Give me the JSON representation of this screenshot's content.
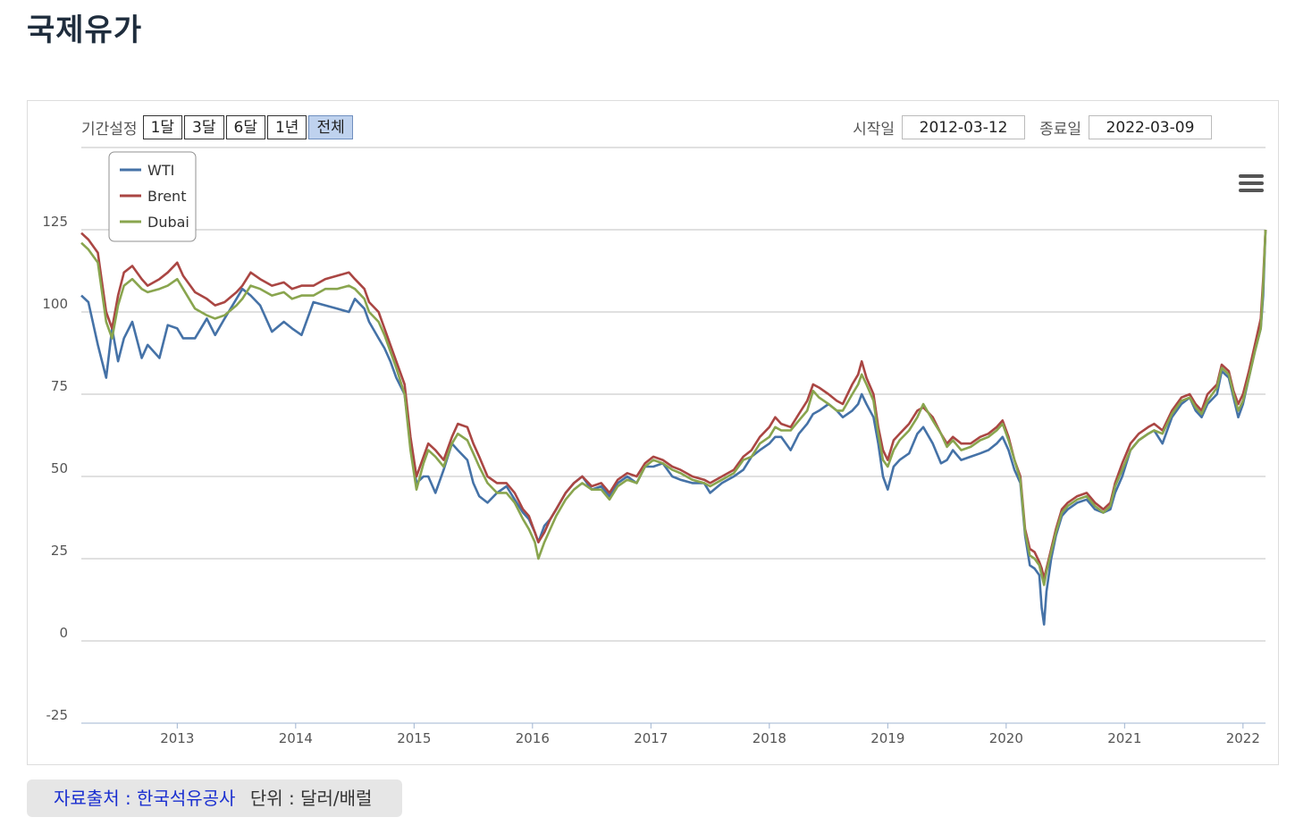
{
  "page": {
    "title": "국제유가"
  },
  "controls": {
    "period_label": "기간설정",
    "buttons": [
      {
        "label": "1달",
        "active": false
      },
      {
        "label": "3달",
        "active": false
      },
      {
        "label": "6달",
        "active": false
      },
      {
        "label": "1년",
        "active": false
      },
      {
        "label": "전체",
        "active": true
      }
    ],
    "start_label": "시작일",
    "start_value": "2012-03-12",
    "end_label": "종료일",
    "end_value": "2022-03-09"
  },
  "menu": {
    "icon": "hamburger-menu-icon"
  },
  "footer": {
    "source": "자료출처 : 한국석유공사",
    "unit": "단위 : 달러/배럴"
  },
  "chart_data": {
    "type": "line",
    "xlabel": "",
    "ylabel": "",
    "ylim": [
      -25,
      150
    ],
    "yticks": [
      -25,
      0,
      25,
      50,
      75,
      100,
      125
    ],
    "xlim": [
      2012.19,
      2022.19
    ],
    "xticks": [
      "2013",
      "2014",
      "2015",
      "2016",
      "2017",
      "2018",
      "2019",
      "2020",
      "2021",
      "2022"
    ],
    "grid": true,
    "legend": "top-left",
    "series": [
      {
        "name": "WTI",
        "color": "#4572a7",
        "x": [
          2012.19,
          2012.25,
          2012.33,
          2012.4,
          2012.45,
          2012.5,
          2012.55,
          2012.62,
          2012.7,
          2012.75,
          2012.85,
          2012.92,
          2013.0,
          2013.05,
          2013.15,
          2013.25,
          2013.32,
          2013.4,
          2013.5,
          2013.55,
          2013.62,
          2013.7,
          2013.8,
          2013.9,
          2013.97,
          2014.05,
          2014.15,
          2014.25,
          2014.35,
          2014.45,
          2014.5,
          2014.58,
          2014.62,
          2014.7,
          2014.75,
          2014.8,
          2014.85,
          2014.92,
          2014.97,
          2015.02,
          2015.08,
          2015.12,
          2015.18,
          2015.25,
          2015.32,
          2015.37,
          2015.45,
          2015.5,
          2015.55,
          2015.62,
          2015.7,
          2015.78,
          2015.85,
          2015.92,
          2015.97,
          2016.02,
          2016.05,
          2016.1,
          2016.15,
          2016.2,
          2016.28,
          2016.35,
          2016.42,
          2016.5,
          2016.58,
          2016.65,
          2016.72,
          2016.8,
          2016.88,
          2016.95,
          2017.02,
          2017.1,
          2017.18,
          2017.25,
          2017.35,
          2017.45,
          2017.5,
          2017.6,
          2017.7,
          2017.78,
          2017.85,
          2017.92,
          2018.0,
          2018.05,
          2018.1,
          2018.18,
          2018.25,
          2018.32,
          2018.37,
          2018.42,
          2018.5,
          2018.57,
          2018.62,
          2018.7,
          2018.75,
          2018.78,
          2018.82,
          2018.88,
          2018.92,
          2018.96,
          2019.0,
          2019.05,
          2019.1,
          2019.18,
          2019.25,
          2019.3,
          2019.38,
          2019.45,
          2019.5,
          2019.55,
          2019.62,
          2019.7,
          2019.78,
          2019.85,
          2019.92,
          2019.97,
          2020.02,
          2020.07,
          2020.12,
          2020.16,
          2020.2,
          2020.24,
          2020.28,
          2020.3,
          2020.32,
          2020.34,
          2020.38,
          2020.42,
          2020.47,
          2020.52,
          2020.6,
          2020.68,
          2020.75,
          2020.82,
          2020.88,
          2020.92,
          2020.98,
          2021.05,
          2021.12,
          2021.2,
          2021.25,
          2021.32,
          2021.4,
          2021.48,
          2021.55,
          2021.6,
          2021.65,
          2021.7,
          2021.78,
          2021.82,
          2021.88,
          2021.92,
          2021.96,
          2022.0,
          2022.05,
          2022.1,
          2022.15,
          2022.17,
          2022.19
        ],
        "values": [
          105,
          103,
          90,
          80,
          95,
          85,
          92,
          97,
          86,
          90,
          86,
          96,
          95,
          92,
          92,
          98,
          93,
          98,
          104,
          107,
          105,
          102,
          94,
          97,
          95,
          93,
          103,
          102,
          101,
          100,
          104,
          101,
          97,
          92,
          89,
          85,
          80,
          75,
          60,
          48,
          50,
          50,
          45,
          52,
          60,
          58,
          55,
          48,
          44,
          42,
          45,
          47,
          43,
          39,
          37,
          33,
          30,
          35,
          37,
          40,
          45,
          48,
          50,
          46,
          47,
          44,
          48,
          50,
          48,
          53,
          53,
          54,
          50,
          49,
          48,
          48,
          45,
          48,
          50,
          52,
          56,
          58,
          60,
          62,
          62,
          58,
          63,
          66,
          69,
          70,
          72,
          70,
          68,
          70,
          72,
          75,
          72,
          68,
          60,
          50,
          46,
          53,
          55,
          57,
          63,
          65,
          60,
          54,
          55,
          58,
          55,
          56,
          57,
          58,
          60,
          62,
          58,
          52,
          48,
          32,
          23,
          22,
          20,
          10,
          5,
          15,
          25,
          32,
          38,
          40,
          42,
          43,
          40,
          39,
          40,
          45,
          50,
          58,
          61,
          63,
          64,
          60,
          68,
          72,
          74,
          70,
          68,
          72,
          75,
          82,
          80,
          74,
          68,
          72,
          80,
          88,
          95,
          105,
          125
        ]
      },
      {
        "name": "Brent",
        "color": "#aa4643",
        "x": [
          2012.19,
          2012.25,
          2012.33,
          2012.4,
          2012.45,
          2012.5,
          2012.55,
          2012.62,
          2012.7,
          2012.75,
          2012.85,
          2012.92,
          2013.0,
          2013.05,
          2013.15,
          2013.25,
          2013.32,
          2013.4,
          2013.5,
          2013.55,
          2013.62,
          2013.7,
          2013.8,
          2013.9,
          2013.97,
          2014.05,
          2014.15,
          2014.25,
          2014.35,
          2014.45,
          2014.5,
          2014.58,
          2014.62,
          2014.7,
          2014.75,
          2014.8,
          2014.85,
          2014.92,
          2014.97,
          2015.02,
          2015.08,
          2015.12,
          2015.18,
          2015.25,
          2015.32,
          2015.37,
          2015.45,
          2015.5,
          2015.55,
          2015.62,
          2015.7,
          2015.78,
          2015.85,
          2015.92,
          2015.97,
          2016.02,
          2016.05,
          2016.1,
          2016.15,
          2016.2,
          2016.28,
          2016.35,
          2016.42,
          2016.5,
          2016.58,
          2016.65,
          2016.72,
          2016.8,
          2016.88,
          2016.95,
          2017.02,
          2017.1,
          2017.18,
          2017.25,
          2017.35,
          2017.45,
          2017.5,
          2017.6,
          2017.7,
          2017.78,
          2017.85,
          2017.92,
          2018.0,
          2018.05,
          2018.1,
          2018.18,
          2018.25,
          2018.32,
          2018.37,
          2018.42,
          2018.5,
          2018.57,
          2018.62,
          2018.7,
          2018.75,
          2018.78,
          2018.82,
          2018.88,
          2018.92,
          2018.96,
          2019.0,
          2019.05,
          2019.1,
          2019.18,
          2019.25,
          2019.3,
          2019.38,
          2019.45,
          2019.5,
          2019.55,
          2019.62,
          2019.7,
          2019.78,
          2019.85,
          2019.92,
          2019.97,
          2020.02,
          2020.07,
          2020.12,
          2020.16,
          2020.2,
          2020.24,
          2020.28,
          2020.3,
          2020.32,
          2020.34,
          2020.38,
          2020.42,
          2020.47,
          2020.52,
          2020.6,
          2020.68,
          2020.75,
          2020.82,
          2020.88,
          2020.92,
          2020.98,
          2021.05,
          2021.12,
          2021.2,
          2021.25,
          2021.32,
          2021.4,
          2021.48,
          2021.55,
          2021.6,
          2021.65,
          2021.7,
          2021.78,
          2021.82,
          2021.88,
          2021.92,
          2021.96,
          2022.0,
          2022.05,
          2022.1,
          2022.15,
          2022.17,
          2022.19
        ],
        "values": [
          124,
          122,
          118,
          100,
          95,
          105,
          112,
          114,
          110,
          108,
          110,
          112,
          115,
          111,
          106,
          104,
          102,
          103,
          106,
          108,
          112,
          110,
          108,
          109,
          107,
          108,
          108,
          110,
          111,
          112,
          110,
          107,
          103,
          100,
          95,
          90,
          85,
          78,
          62,
          50,
          56,
          60,
          58,
          55,
          62,
          66,
          65,
          60,
          56,
          50,
          48,
          48,
          45,
          40,
          38,
          33,
          30,
          33,
          37,
          40,
          45,
          48,
          50,
          47,
          48,
          45,
          49,
          51,
          50,
          54,
          56,
          55,
          53,
          52,
          50,
          49,
          48,
          50,
          52,
          56,
          58,
          62,
          65,
          68,
          66,
          65,
          69,
          73,
          78,
          77,
          75,
          73,
          72,
          78,
          81,
          85,
          80,
          75,
          65,
          58,
          55,
          61,
          63,
          66,
          70,
          71,
          68,
          63,
          60,
          62,
          60,
          60,
          62,
          63,
          65,
          67,
          62,
          55,
          50,
          34,
          28,
          27,
          24,
          22,
          19,
          22,
          28,
          34,
          40,
          42,
          44,
          45,
          42,
          40,
          42,
          48,
          54,
          60,
          63,
          65,
          66,
          64,
          70,
          74,
          75,
          72,
          70,
          75,
          78,
          84,
          82,
          76,
          72,
          75,
          82,
          90,
          98,
          110,
          125
        ]
      },
      {
        "name": "Dubai",
        "color": "#89a54e",
        "x": [
          2012.19,
          2012.25,
          2012.33,
          2012.4,
          2012.45,
          2012.5,
          2012.55,
          2012.62,
          2012.7,
          2012.75,
          2012.85,
          2012.92,
          2013.0,
          2013.05,
          2013.15,
          2013.25,
          2013.32,
          2013.4,
          2013.5,
          2013.55,
          2013.62,
          2013.7,
          2013.8,
          2013.9,
          2013.97,
          2014.05,
          2014.15,
          2014.25,
          2014.35,
          2014.45,
          2014.5,
          2014.58,
          2014.62,
          2014.7,
          2014.75,
          2014.8,
          2014.85,
          2014.92,
          2014.97,
          2015.02,
          2015.08,
          2015.12,
          2015.18,
          2015.25,
          2015.32,
          2015.37,
          2015.45,
          2015.5,
          2015.55,
          2015.62,
          2015.7,
          2015.78,
          2015.85,
          2015.92,
          2015.97,
          2016.02,
          2016.05,
          2016.1,
          2016.15,
          2016.2,
          2016.28,
          2016.35,
          2016.42,
          2016.5,
          2016.58,
          2016.65,
          2016.72,
          2016.8,
          2016.88,
          2016.95,
          2017.02,
          2017.1,
          2017.18,
          2017.25,
          2017.35,
          2017.45,
          2017.5,
          2017.6,
          2017.7,
          2017.78,
          2017.85,
          2017.92,
          2018.0,
          2018.05,
          2018.1,
          2018.18,
          2018.25,
          2018.32,
          2018.37,
          2018.42,
          2018.5,
          2018.57,
          2018.62,
          2018.7,
          2018.75,
          2018.78,
          2018.82,
          2018.88,
          2018.92,
          2018.96,
          2019.0,
          2019.05,
          2019.1,
          2019.18,
          2019.25,
          2019.3,
          2019.38,
          2019.45,
          2019.5,
          2019.55,
          2019.62,
          2019.7,
          2019.78,
          2019.85,
          2019.92,
          2019.97,
          2020.02,
          2020.07,
          2020.12,
          2020.16,
          2020.2,
          2020.24,
          2020.28,
          2020.3,
          2020.32,
          2020.34,
          2020.38,
          2020.42,
          2020.47,
          2020.52,
          2020.6,
          2020.68,
          2020.75,
          2020.82,
          2020.88,
          2020.92,
          2020.98,
          2021.05,
          2021.12,
          2021.2,
          2021.25,
          2021.32,
          2021.4,
          2021.48,
          2021.55,
          2021.6,
          2021.65,
          2021.7,
          2021.78,
          2021.82,
          2021.88,
          2021.92,
          2021.96,
          2022.0,
          2022.05,
          2022.1,
          2022.15,
          2022.17,
          2022.19
        ],
        "values": [
          121,
          119,
          115,
          97,
          92,
          102,
          108,
          110,
          107,
          106,
          107,
          108,
          110,
          107,
          101,
          99,
          98,
          99,
          102,
          104,
          108,
          107,
          105,
          106,
          104,
          105,
          105,
          107,
          107,
          108,
          107,
          104,
          100,
          97,
          93,
          88,
          83,
          75,
          58,
          46,
          54,
          58,
          56,
          53,
          60,
          63,
          61,
          57,
          53,
          48,
          45,
          45,
          42,
          37,
          34,
          30,
          25,
          30,
          34,
          38,
          43,
          46,
          48,
          46,
          46,
          43,
          47,
          49,
          48,
          53,
          55,
          54,
          52,
          51,
          49,
          48,
          47,
          49,
          51,
          55,
          56,
          60,
          62,
          65,
          64,
          64,
          67,
          70,
          76,
          74,
          72,
          70,
          70,
          75,
          78,
          81,
          78,
          73,
          63,
          55,
          53,
          58,
          61,
          64,
          68,
          72,
          67,
          63,
          59,
          61,
          58,
          59,
          61,
          62,
          64,
          66,
          61,
          55,
          49,
          33,
          26,
          25,
          23,
          20,
          17,
          21,
          27,
          33,
          39,
          41,
          43,
          44,
          41,
          39,
          41,
          47,
          52,
          58,
          61,
          63,
          64,
          63,
          69,
          73,
          74,
          71,
          69,
          73,
          77,
          83,
          81,
          75,
          70,
          73,
          80,
          88,
          95,
          108,
          125
        ]
      }
    ]
  }
}
